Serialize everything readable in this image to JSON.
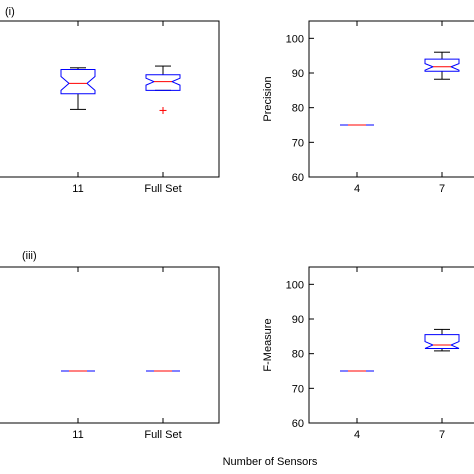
{
  "figure": {
    "xlabel": "Number of Sensors"
  },
  "chart_data": [
    {
      "type": "box",
      "panel_label": "(i)",
      "title": "",
      "ylabel": "",
      "ylim": [
        60,
        105
      ],
      "yticks": [],
      "categories": [
        "11",
        "Full Set"
      ],
      "grid": false,
      "series": [
        {
          "category": "11",
          "whisker_low": 79.5,
          "q1": 84.0,
          "median": 87.0,
          "q3": 91.0,
          "whisker_high": 91.5,
          "notch_low": 85.0,
          "notch_high": 89.0,
          "outliers": []
        },
        {
          "category": "Full Set",
          "whisker_low": 85.0,
          "q1": 85.0,
          "median": 87.5,
          "q3": 89.5,
          "whisker_high": 92.0,
          "notch_low": 86.5,
          "notch_high": 88.5,
          "outliers": [
            79.2
          ]
        }
      ]
    },
    {
      "type": "box",
      "panel_label": "",
      "title": "",
      "ylabel": "Precision",
      "ylim": [
        60,
        105
      ],
      "yticks": [
        60,
        70,
        80,
        90,
        100
      ],
      "categories": [
        "4",
        "7"
      ],
      "grid": false,
      "series": [
        {
          "category": "4",
          "whisker_low": 75.0,
          "q1": 75.0,
          "median": 75.0,
          "q3": 75.0,
          "whisker_high": 75.0,
          "notch_low": 75.0,
          "notch_high": 75.0,
          "outliers": []
        },
        {
          "category": "7",
          "whisker_low": 88.2,
          "q1": 90.5,
          "median": 91.8,
          "q3": 94.0,
          "whisker_high": 96.0,
          "notch_low": 90.8,
          "notch_high": 92.7,
          "outliers": []
        }
      ]
    },
    {
      "type": "box",
      "panel_label": "(iii)",
      "title": "",
      "ylabel": "",
      "ylim": [
        60,
        105
      ],
      "yticks": [],
      "categories": [
        "11",
        "Full Set"
      ],
      "grid": false,
      "series": [
        {
          "category": "11",
          "whisker_low": 75.0,
          "q1": 75.0,
          "median": 75.0,
          "q3": 75.0,
          "whisker_high": 75.0,
          "notch_low": 75.0,
          "notch_high": 75.0,
          "outliers": []
        },
        {
          "category": "Full Set",
          "whisker_low": 75.0,
          "q1": 75.0,
          "median": 75.0,
          "q3": 75.0,
          "whisker_high": 75.0,
          "notch_low": 75.0,
          "notch_high": 75.0,
          "outliers": []
        }
      ]
    },
    {
      "type": "box",
      "panel_label": "",
      "title": "",
      "ylabel": "F-Measure",
      "ylim": [
        60,
        105
      ],
      "yticks": [
        60,
        70,
        80,
        90,
        100
      ],
      "categories": [
        "4",
        "7"
      ],
      "grid": false,
      "series": [
        {
          "category": "4",
          "whisker_low": 75.0,
          "q1": 75.0,
          "median": 75.0,
          "q3": 75.0,
          "whisker_high": 75.0,
          "notch_low": 75.0,
          "notch_high": 75.0,
          "outliers": []
        },
        {
          "category": "7",
          "whisker_low": 80.8,
          "q1": 81.5,
          "median": 82.5,
          "q3": 85.5,
          "whisker_high": 87.0,
          "notch_low": 81.5,
          "notch_high": 83.5,
          "outliers": []
        }
      ]
    }
  ],
  "styles": {
    "box_color": "#0000ff",
    "median_color": "#ff0000",
    "whisker_color": "#000000",
    "outlier_color": "#ff0000",
    "axis_color": "#000000"
  }
}
